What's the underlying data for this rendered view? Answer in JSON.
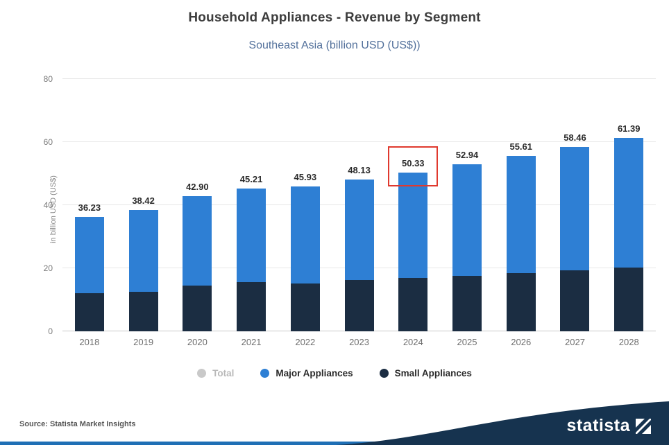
{
  "header": {
    "title": "Household Appliances - Revenue by Segment",
    "subtitle": "Southeast Asia (billion USD (US$))"
  },
  "chart_data": {
    "type": "bar",
    "stacked": true,
    "title": "Household Appliances - Revenue by Segment",
    "subtitle": "Southeast Asia (billion USD (US$))",
    "xlabel": "",
    "ylabel": "in billion USD (US$)",
    "ylim": [
      0,
      80
    ],
    "yticks": [
      0,
      20,
      40,
      60,
      80
    ],
    "grid": true,
    "legend_position": "bottom",
    "categories": [
      "2018",
      "2019",
      "2020",
      "2021",
      "2022",
      "2023",
      "2024",
      "2025",
      "2026",
      "2027",
      "2028"
    ],
    "totals": [
      36.23,
      38.42,
      42.9,
      45.21,
      45.93,
      48.13,
      50.33,
      52.94,
      55.61,
      58.46,
      61.39
    ],
    "total_labels": [
      "36.23",
      "38.42",
      "42.90",
      "45.21",
      "45.93",
      "48.13",
      "50.33",
      "52.94",
      "55.61",
      "58.46",
      "61.39"
    ],
    "series": [
      {
        "name": "Small Appliances",
        "color": "#1b2d42",
        "values": [
          12.0,
          12.6,
          14.6,
          15.6,
          15.2,
          16.2,
          16.9,
          17.6,
          18.4,
          19.3,
          20.2
        ]
      },
      {
        "name": "Major Appliances",
        "color": "#2e7fd4",
        "values": [
          24.23,
          25.82,
          28.3,
          29.61,
          30.73,
          31.93,
          33.43,
          35.34,
          37.21,
          39.16,
          41.19
        ]
      }
    ],
    "highlight": {
      "category": "2024",
      "label": "50.33",
      "color": "#e0392e"
    }
  },
  "legend": {
    "items": [
      {
        "label": "Total",
        "color": "#c9c9c9",
        "active": false
      },
      {
        "label": "Major Appliances",
        "color": "#2e7fd4",
        "active": true
      },
      {
        "label": "Small Appliances",
        "color": "#1b2d42",
        "active": true
      }
    ]
  },
  "footer": {
    "source": "Source: Statista Market Insights",
    "brand": "statista",
    "band_color": "#16334f",
    "strip_color": "#1f6fb5"
  }
}
